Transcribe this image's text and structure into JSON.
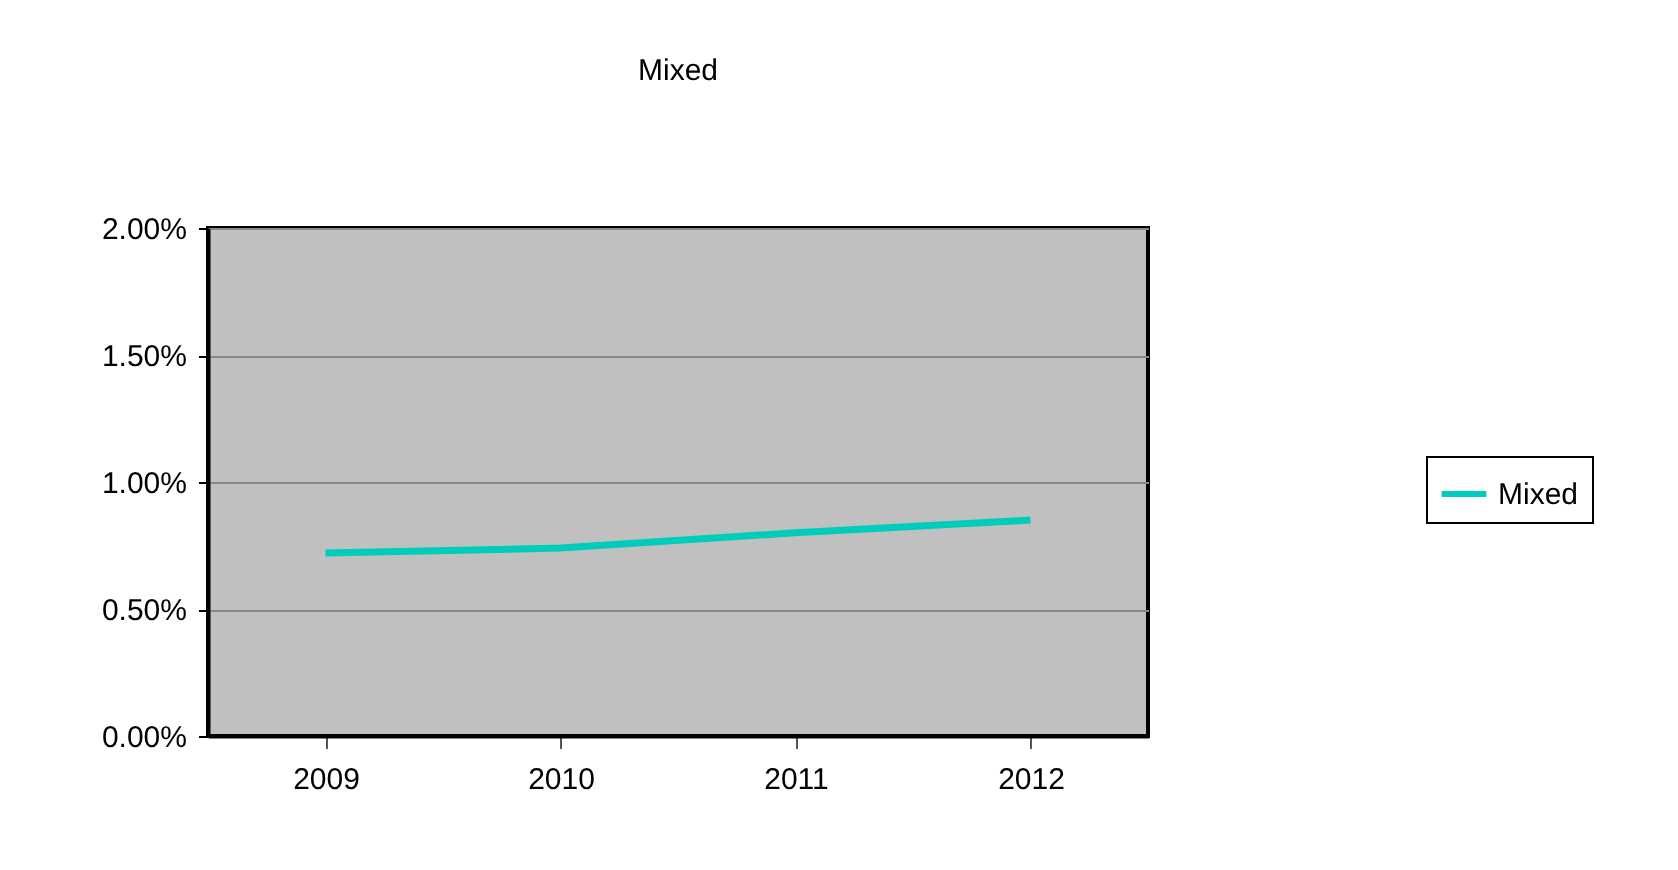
{
  "chart_data": {
    "type": "line",
    "title": "Mixed",
    "categories": [
      "2009",
      "2010",
      "2011",
      "2012"
    ],
    "series": [
      {
        "name": "Mixed",
        "color": "#00ccbb",
        "values": [
          0.72,
          0.74,
          0.8,
          0.85
        ]
      }
    ],
    "ylim": [
      0,
      2
    ],
    "yticks": [
      {
        "value": 0,
        "label": "0.00%"
      },
      {
        "value": 0.5,
        "label": "0.50%"
      },
      {
        "value": 1,
        "label": "1.00%"
      },
      {
        "value": 1.5,
        "label": "1.50%"
      },
      {
        "value": 2,
        "label": "2.00%"
      }
    ],
    "grid": "y",
    "legend": "right",
    "marker": "none",
    "line_style": "solid"
  }
}
